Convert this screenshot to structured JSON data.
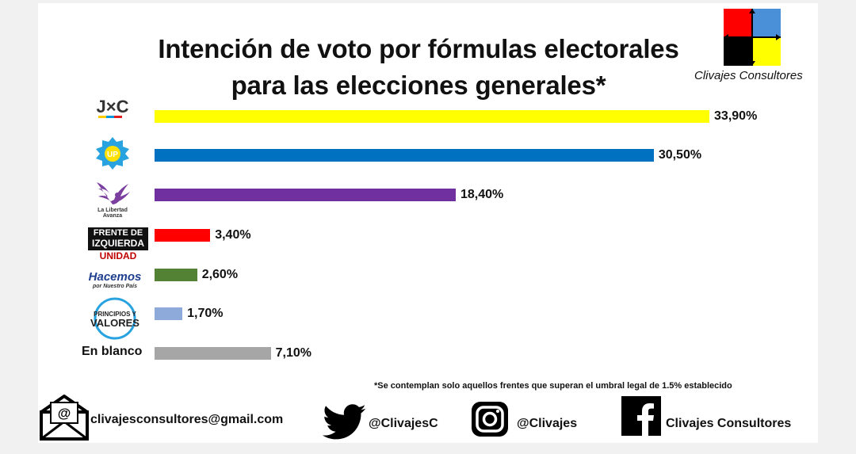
{
  "title_line1": "Intención de voto por fórmulas electorales",
  "title_line2": "para las elecciones generales*",
  "brand": {
    "name": "Clivajes Consultores",
    "colors": [
      "#ff0000",
      "#4a90d9",
      "#000000",
      "#ffff00"
    ]
  },
  "party_logos": [
    {
      "icon": "jxc-logo",
      "text": "J×C"
    },
    {
      "icon": "up-logo",
      "text": "UP"
    },
    {
      "icon": "la-libertad-avanza-logo",
      "text": "La Libertad Avanza"
    },
    {
      "icon": "frente-de-izquierda-logo",
      "line1": "FRENTE DE",
      "line2": "IZQUIERDA",
      "line3": "UNIDAD"
    },
    {
      "icon": "hacemos-logo",
      "line1": "Hacemos",
      "line2": "por Nuestro País"
    },
    {
      "icon": "principios-y-valores-logo",
      "line1": "PRINCIPIOS Y",
      "line2": "VALORES"
    }
  ],
  "blank_label": "En blanco",
  "chart_data": {
    "type": "bar",
    "orientation": "horizontal",
    "categories": [
      "J×C",
      "UP",
      "La Libertad Avanza",
      "Frente de Izquierda Unidad",
      "Hacemos por Nuestro País",
      "Principios y Valores",
      "En blanco"
    ],
    "values": [
      33.9,
      30.5,
      18.4,
      3.4,
      2.6,
      1.7,
      7.1
    ],
    "value_labels": [
      "33,90%",
      "30,50%",
      "18,40%",
      "3,40%",
      "2,60%",
      "1,70%",
      "7,10%"
    ],
    "colors": [
      "#ffff00",
      "#0070c0",
      "#7030a0",
      "#ff0000",
      "#548235",
      "#8eaadb",
      "#a6a6a6"
    ],
    "unit": "%",
    "grid": false,
    "legend": "none"
  },
  "footnote": "*Se contemplan solo aquellos frentes que superan el umbral legal de 1.5% establecido",
  "footer": {
    "email": "clivajesconsultores@gmail.com",
    "twitter": "@ClivajesC",
    "instagram": "@Clivajes",
    "facebook": "Clivajes Consultores"
  }
}
